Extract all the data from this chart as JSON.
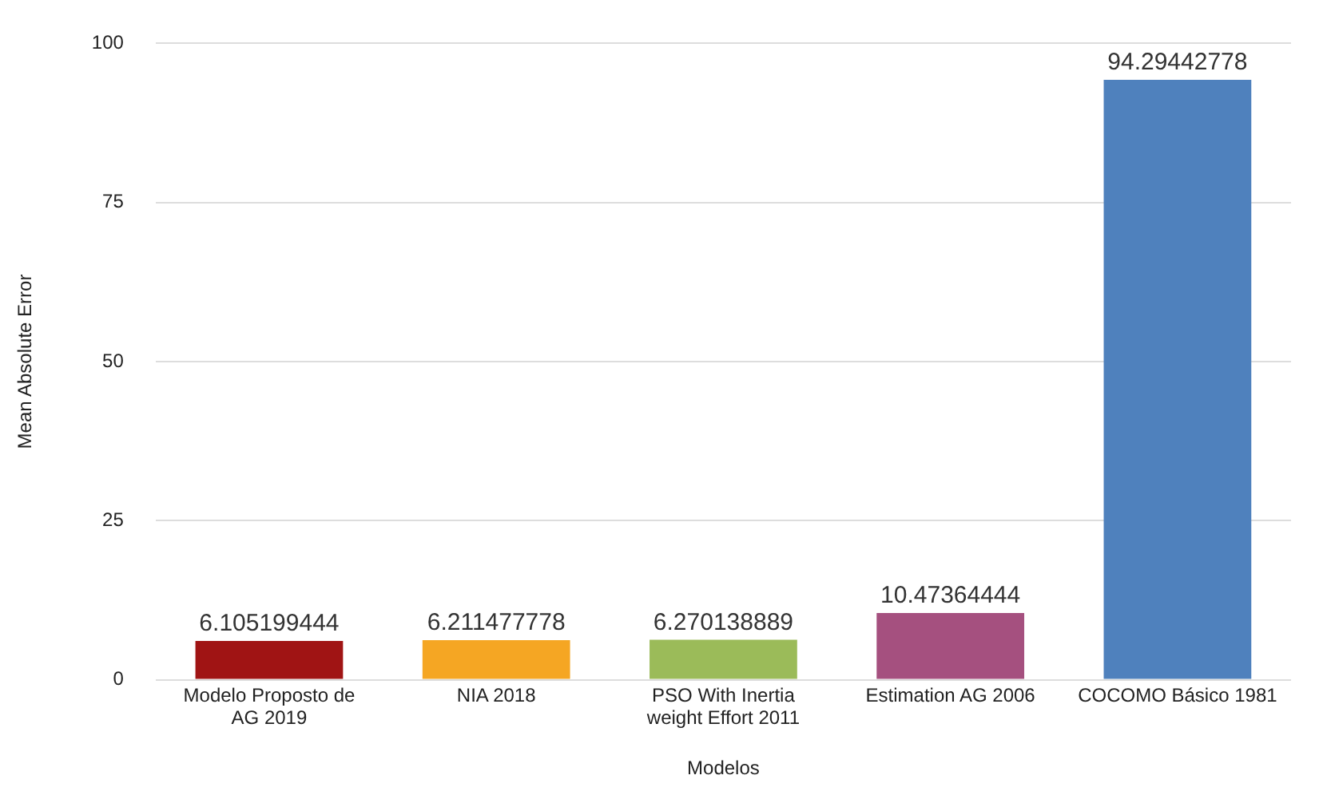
{
  "chart_data": {
    "type": "bar",
    "xlabel": "Modelos",
    "ylabel": "Mean Absolute Error",
    "categories": [
      "Modelo Proposto de AG 2019",
      "NIA 2018",
      "PSO With Inertia weight Effort 2011",
      "Estimation AG 2006",
      "COCOMO Básico 1981"
    ],
    "values": [
      6.105199444,
      6.211477778,
      6.270138889,
      10.47364444,
      94.29442778
    ],
    "colors": [
      "#a01414",
      "#f5a623",
      "#9bbb59",
      "#a5507f",
      "#4f81bd"
    ],
    "ylim": [
      0,
      100
    ],
    "yticks": [
      0,
      25,
      50,
      75,
      100
    ],
    "grid": "y",
    "legend": false,
    "data_labels": true
  }
}
